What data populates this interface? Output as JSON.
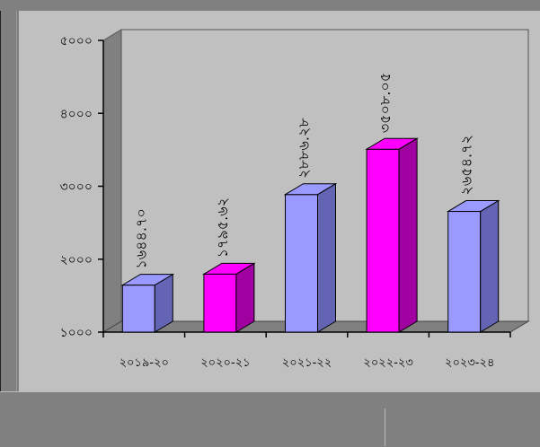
{
  "chart_data": {
    "type": "bar",
    "title": "",
    "xlabel": "",
    "ylabel": "",
    "categories": [
      "২০১৯-২০",
      "২০২০-২১",
      "২০২১-২২",
      "২০২২-২৩",
      "২০২৩-২৪"
    ],
    "values": [
      1644.7,
      1795.62,
      2886.28,
      3508.05,
      2654.72
    ],
    "value_labels": [
      "১৬৪৪.৭০",
      "১৭৯৫.৬২",
      "২৮৮৬.২৮",
      "৩৫০৮.০৫",
      "২৬৫৪.৭২"
    ],
    "ylim": [
      1000,
      5000
    ],
    "yticks": [
      1000,
      2000,
      3000,
      4000,
      5000
    ],
    "ytick_labels": [
      "১০০০",
      "২০০০",
      "৩০০০",
      "৪০০০",
      "৫০০০"
    ],
    "grid": false,
    "legend": "none",
    "colors": {
      "bar_light": "#9999ff",
      "bar_light_side": "#6464b4",
      "bar_magenta": "#ff00ff",
      "bar_magenta_side": "#a000a0",
      "plot_wall": "#c0c0c0",
      "plot_left_wall": "#808080",
      "plot_floor": "#808080",
      "panel": "#c0c0c0",
      "background": "#808080"
    },
    "bar_colors": [
      "light",
      "magenta",
      "light",
      "magenta",
      "light"
    ]
  }
}
